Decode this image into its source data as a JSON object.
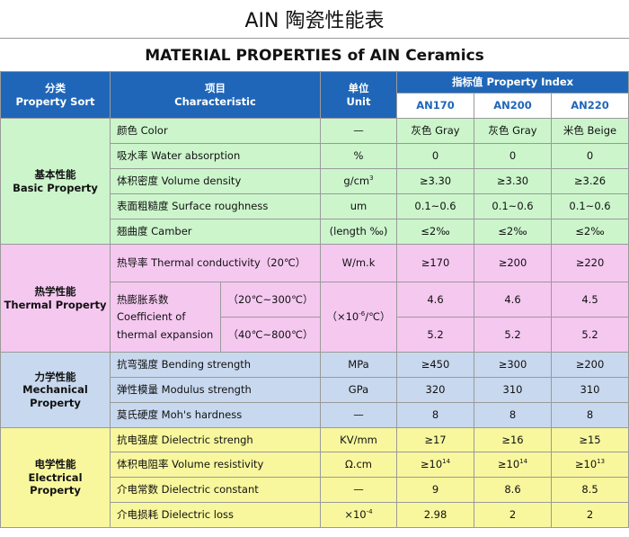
{
  "title_cn": "AIN 陶瓷性能表",
  "title_en": "MATERIAL PROPERTIES of AIN Ceramics",
  "header": {
    "sort_cn": "分类",
    "sort_en": "Property Sort",
    "char_cn": "项目",
    "char_en": "Characteristic",
    "unit_cn": "单位",
    "unit_en": "Unit",
    "index": "指标值 Property Index",
    "grades": [
      "AN170",
      "AN200",
      "AN220"
    ]
  },
  "basic": {
    "group_cn": "基本性能",
    "group_en": "Basic Property",
    "rows": [
      {
        "name": "颜色 Color",
        "unit": "—",
        "v": [
          "灰色 Gray",
          "灰色 Gray",
          "米色 Beige"
        ]
      },
      {
        "name": "吸水率 Water absorption",
        "unit": "%",
        "v": [
          "0",
          "0",
          "0"
        ]
      },
      {
        "name": "体积密度 Volume density",
        "unit": "g/cm",
        "unit_sup": "3",
        "v": [
          "≥3.30",
          "≥3.30",
          "≥3.26"
        ]
      },
      {
        "name": "表面粗糙度 Surface roughness",
        "unit": "um",
        "v": [
          "0.1~0.6",
          "0.1~0.6",
          "0.1~0.6"
        ]
      },
      {
        "name": "翘曲度 Camber",
        "unit": "(length ‰)",
        "v": [
          "≤2‰",
          "≤2‰",
          "≤2‰"
        ]
      }
    ]
  },
  "thermal": {
    "group_cn": "热学性能",
    "group_en": "Thermal Property",
    "conductivity": {
      "name": "热导率 Thermal conductivity（20℃）",
      "unit": "W/m.k",
      "v": [
        "≥170",
        "≥200",
        "≥220"
      ]
    },
    "expansion": {
      "name_cn": "热膨胀系数",
      "name_en1": "Coefficient of",
      "name_en2": "thermal expansion",
      "unit_pre": "（×10",
      "unit_sup": "-6",
      "unit_post": "/℃）",
      "ranges": [
        {
          "range": "（20℃~300℃）",
          "v": [
            "4.6",
            "4.6",
            "4.5"
          ]
        },
        {
          "range": "（40℃~800℃）",
          "v": [
            "5.2",
            "5.2",
            "5.2"
          ]
        }
      ]
    }
  },
  "mechanical": {
    "group_cn": "力学性能",
    "group_en1": "Mechanical",
    "group_en2": "Property",
    "rows": [
      {
        "name": "抗弯强度 Bending strength",
        "unit": "MPa",
        "v": [
          "≥450",
          "≥300",
          "≥200"
        ]
      },
      {
        "name": "弹性模量 Modulus strength",
        "unit": "GPa",
        "v": [
          "320",
          "310",
          "310"
        ]
      },
      {
        "name": "莫氏硬度 Moh's hardness",
        "unit": "—",
        "v": [
          "8",
          "8",
          "8"
        ]
      }
    ]
  },
  "electrical": {
    "group_cn": "电学性能",
    "group_en1": "Electrical",
    "group_en2": "Property",
    "rows": [
      {
        "name": "抗电强度 Dielectric strengh",
        "unit": "KV/mm",
        "v": [
          "≥17",
          "≥16",
          "≥15"
        ]
      },
      {
        "name": "体积电阻率 Volume resistivity",
        "unit": "Ω.cm",
        "v": [
          "≥10",
          "≥10",
          "≥10"
        ],
        "v_sup": [
          "14",
          "14",
          "13"
        ]
      },
      {
        "name": "介电常数 Dielectric constant",
        "unit": "—",
        "v": [
          "9",
          "8.6",
          "8.5"
        ]
      },
      {
        "name": "介电损耗 Dielectric loss",
        "unit": "×10",
        "unit_sup": "-4",
        "v": [
          "2.98",
          "2",
          "2"
        ]
      }
    ]
  }
}
